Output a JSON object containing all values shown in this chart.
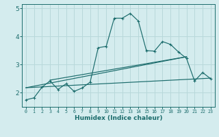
{
  "xlabel": "Humidex (Indice chaleur)",
  "xlim": [
    -0.5,
    23.5
  ],
  "ylim": [
    1.5,
    5.15
  ],
  "yticks": [
    2,
    3,
    4,
    5
  ],
  "xticks": [
    0,
    1,
    2,
    3,
    4,
    5,
    6,
    7,
    8,
    9,
    10,
    11,
    12,
    13,
    14,
    15,
    16,
    17,
    18,
    19,
    20,
    21,
    22,
    23
  ],
  "bg_color": "#d4ecee",
  "line_color": "#1a6b6b",
  "grid_color": "#b8d8da",
  "main_x": [
    0,
    1,
    2,
    3,
    4,
    5,
    6,
    7,
    8,
    9,
    10,
    11,
    12,
    13,
    14,
    15,
    16,
    17,
    18,
    19,
    20,
    21,
    22,
    23
  ],
  "main_y": [
    1.75,
    1.82,
    2.2,
    2.42,
    2.12,
    2.32,
    2.05,
    2.17,
    2.38,
    3.6,
    3.65,
    4.65,
    4.65,
    4.82,
    4.55,
    3.5,
    3.48,
    3.82,
    3.72,
    3.45,
    3.22,
    2.42,
    2.72,
    2.5
  ],
  "trend1_x": [
    0,
    20
  ],
  "trend1_y": [
    2.18,
    3.28
  ],
  "trend2_x": [
    3,
    20
  ],
  "trend2_y": [
    2.45,
    3.28
  ],
  "trend3_x": [
    0,
    23
  ],
  "trend3_y": [
    2.18,
    2.52
  ]
}
